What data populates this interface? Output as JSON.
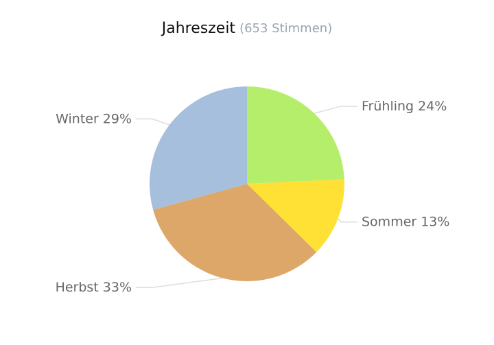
{
  "chart_data": {
    "type": "pie",
    "title": "Jahreszeit",
    "subtitle": "(653 Stimmen)",
    "categories": [
      "Frühling",
      "Sommer",
      "Herbst",
      "Winter"
    ],
    "values": [
      24,
      13,
      33,
      29
    ],
    "value_labels": [
      "24%",
      "13%",
      "33%",
      "29%"
    ],
    "colors": [
      "#b5ee6a",
      "#ffe135",
      "#dea76a",
      "#a6bfdd"
    ]
  }
}
